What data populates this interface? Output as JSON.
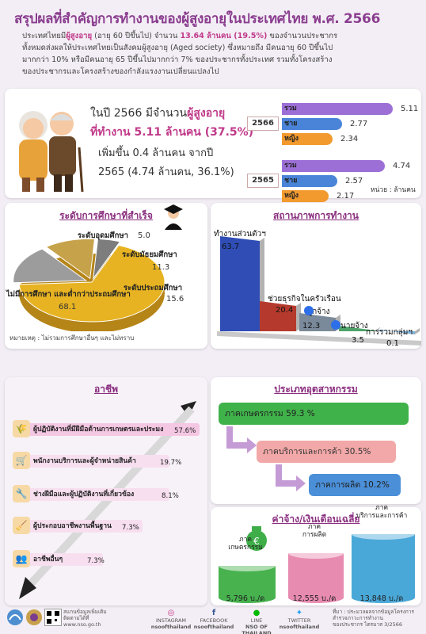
{
  "title": "สรุปผลที่สำคัญการทำงานของผู้สูงอายุในประเทศไทย พ.ศ. 2566",
  "intro": {
    "line1a": "ประเทศไทยมี",
    "line1b": "ผู้สูงอายุ",
    "line1c": " (อายุ 60 ปีขึ้นไป) จำนวน ",
    "line1d": "13.64 ล้านคน (19.5%)",
    "line1e": " ของจำนวนประชากร",
    "line2": "ทั้งหมดส่งผลให้ประเทศไทยเป็นสังคมผู้สูงอายุ (Aged society) ซึ่งหมายถึง มีคนอายุ 60 ปีขึ้นไป",
    "line3": "มากกว่า 10% หรือมีคนอายุ 65 ปีขึ้นไปมากกว่า 7% ของประชากรทั้งประเทศ รวมทั้งโครงสร้าง",
    "line4": "ของประชากรและโครงสร้างของกำลังแรงงานเปลี่ยนแปลงไป"
  },
  "summary": {
    "l1a": "ในปี 2566 มีจำนวน",
    "l1b": "ผู้สูงอายุ",
    "l2": "ที่ทำงาน 5.11 ล้านคน (37.5%)",
    "l3": "เพิ่มขึ้น 0.4 ล้านคน จากปี",
    "l4": "2565 (4.74 ล้านคน, 36.1%)",
    "unit": "หน่วย : ล้านคน",
    "years": [
      {
        "year": "2566",
        "bars": [
          {
            "label": "รวม",
            "value": "5.11"
          },
          {
            "label": "ชาย",
            "value": "2.77"
          },
          {
            "label": "หญิง",
            "value": "2.34"
          }
        ]
      },
      {
        "year": "2565",
        "bars": [
          {
            "label": "รวม",
            "value": "4.74"
          },
          {
            "label": "ชาย",
            "value": "2.57"
          },
          {
            "label": "หญิง",
            "value": "2.17"
          }
        ]
      }
    ],
    "colors": {
      "total": "#9c6fd6",
      "male": "#4a84d8",
      "female": "#f29a2e"
    }
  },
  "education": {
    "title": "ระดับการศึกษาที่สำเร็จ",
    "note": "หมายเหตุ : ไม่รวมการศึกษาอื่นๆ และไม่ทราบ",
    "slices": [
      {
        "label": "ไม่มีการศึกษา และต่ำกว่าประถมศึกษา",
        "value": "68.1",
        "color": "#e7b322"
      },
      {
        "label": "ระดับประถมศึกษา",
        "value": "15.6",
        "color": "#9c9c9c"
      },
      {
        "label": "ระดับมัธยมศึกษา",
        "value": "11.3",
        "color": "#c6a24b"
      },
      {
        "label": "ระดับอุดมศึกษา",
        "value": "5.0",
        "color": "#7d7d7d"
      }
    ]
  },
  "work_status": {
    "title": "สถานภาพการทำงาน",
    "items": [
      {
        "label": "ทำงานส่วนตัวฯ",
        "value": "63.7",
        "color": "#2f4db5"
      },
      {
        "label": "ช่วยธุรกิจในครัวเรือน",
        "value": "20.4",
        "color": "#b53a2d"
      },
      {
        "label": "ลูกจ้าง",
        "value": "12.3",
        "color": "#7a8a9a"
      },
      {
        "label": "นายจ้าง",
        "value": "3.5",
        "color": "#4ea36a"
      },
      {
        "label": "การรวมกลุ่มฯ",
        "value": "0.1",
        "color": "#7fb1d8"
      }
    ]
  },
  "occupation": {
    "title": "อาชีพ",
    "items": [
      {
        "label": "ผู้ปฏิบัติงานที่มีฝีมือด้านการเกษตรและประมง",
        "value": "57.6%"
      },
      {
        "label": "พนักงานบริการและผู้จำหน่ายสินค้า",
        "value": "19.7%"
      },
      {
        "label": "ช่างฝีมือและผู้ปฏิบัติงานที่เกี่ยวข้อง",
        "value": "8.1%"
      },
      {
        "label": "ผู้ประกอบอาชีพงานพื้นฐาน",
        "value": "7.3%"
      },
      {
        "label": "อาชีพอื่นๆ",
        "value": "7.3%"
      }
    ]
  },
  "industry": {
    "title": "ประเภทอุตสาหกรรม",
    "items": [
      {
        "label": "ภาคเกษตรกรรม 59.3 %",
        "color": "#3fb24a"
      },
      {
        "label": "ภาคบริการและการค้า  30.5%",
        "color": "#f2a8a8"
      },
      {
        "label": "ภาคการผลิต  10.2%",
        "color": "#4a8fd8"
      }
    ]
  },
  "wages": {
    "title": "ค่าจ้าง/เงินเดือนเฉลี่ย",
    "items": [
      {
        "label1": "ภาค",
        "label2": "เกษตรกรรม",
        "value": "5,796 บ./ด",
        "color": "#47b24e"
      },
      {
        "label1": "ภาค",
        "label2": "การผลิต",
        "value": "12,555 บ./ด",
        "color": "#e88bb0"
      },
      {
        "label1": "ภาค",
        "label2": "บริการและการค้า",
        "value": "13,848 บ./ด",
        "color": "#4aa8d8"
      }
    ]
  },
  "footer": {
    "scan": "สแกนข้อมูลเพิ่มเติม",
    "scan2": "ติดตามได้ที่",
    "web": "www.nso.go.th",
    "instagram": "INSTAGRAM",
    "instagram_id": "nsoofthailand",
    "facebook": "FACEBOOK",
    "facebook_id": "nsoofthailand",
    "line": "LINE",
    "line_id": "NSO OF THAILAND",
    "twitter": "TWITTER",
    "twitter_id": "nsoofthailand",
    "source1": "ที่มา : ประมวลผลจากข้อมูลโครงการ",
    "source2": "สำรวจภาวะการทำงาน",
    "source3": "ของประชากร ไตรมาส 3/2566"
  }
}
